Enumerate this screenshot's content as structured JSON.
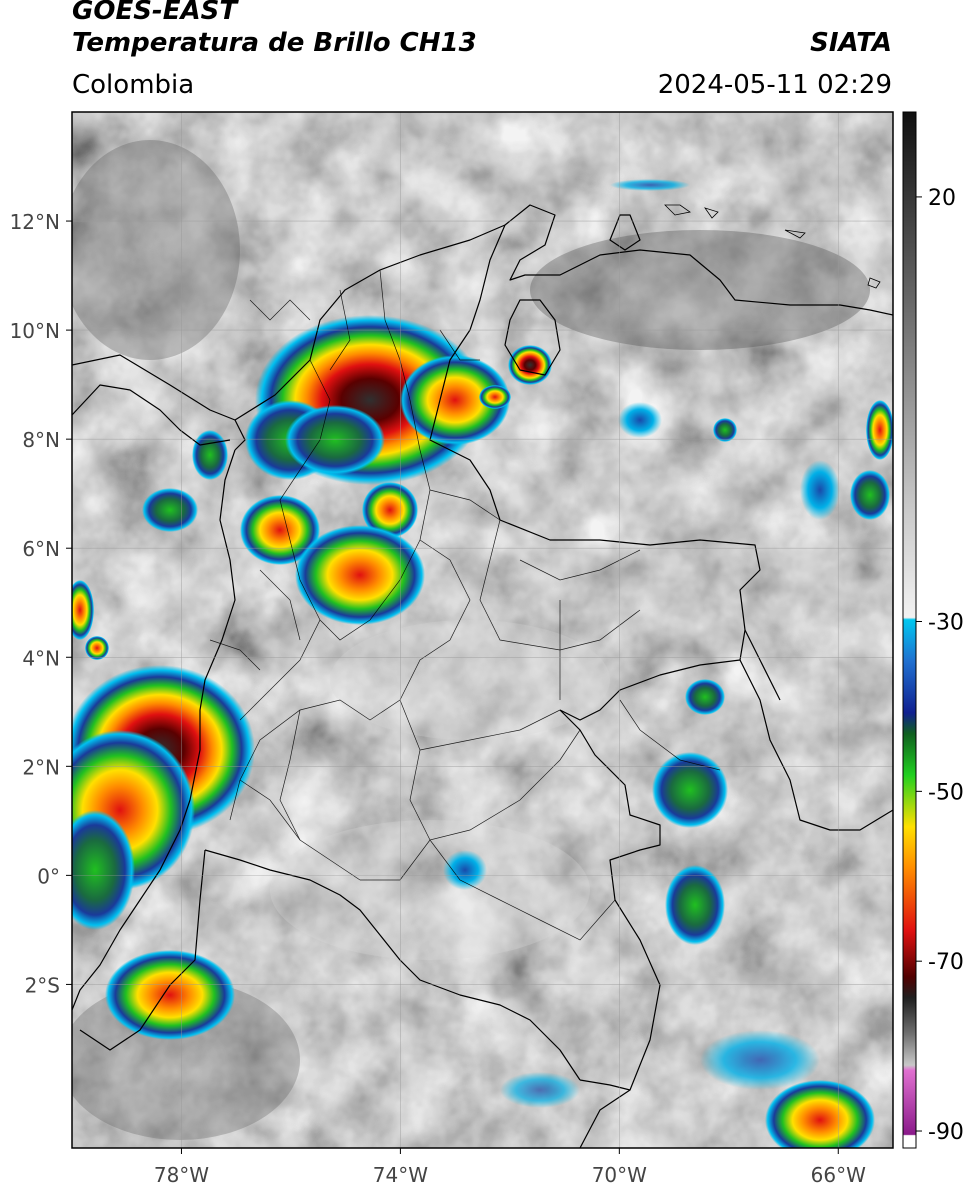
{
  "header": {
    "satellite": "GOES-EAST",
    "product": "Temperatura de Brillo CH13",
    "brand": "SIATA",
    "region": "Colombia",
    "timestamp": "2024-05-11 02:29"
  },
  "map": {
    "latitude_labels": [
      "12°N",
      "10°N",
      "8°N",
      "6°N",
      "4°N",
      "2°N",
      "0°",
      "2°S"
    ],
    "latitude_values": [
      12,
      10,
      8,
      6,
      4,
      2,
      0,
      -2
    ],
    "longitude_labels": [
      "78°W",
      "74°W",
      "70°W",
      "66°W"
    ],
    "longitude_values": [
      -78,
      -74,
      -70,
      -66
    ],
    "extent": {
      "lon_min": -80,
      "lon_max": -65,
      "lat_min": -5,
      "lat_max": 14
    }
  },
  "colorbar": {
    "tick_labels": [
      "20",
      "-30",
      "-50",
      "-70",
      "-90"
    ],
    "tick_values": [
      20,
      -30,
      -50,
      -70,
      -90
    ],
    "range": [
      -92,
      30
    ],
    "colors": {
      "magenta": "#c040c0",
      "black": "#101010",
      "red": "#e01010",
      "orange": "#ff8c00",
      "yellow": "#ffe000",
      "green": "#20d020",
      "dark_blue": "#102090",
      "cyan": "#00c8f0",
      "light_gray": "#e8e8e8",
      "dark_gray": "#202020"
    }
  }
}
